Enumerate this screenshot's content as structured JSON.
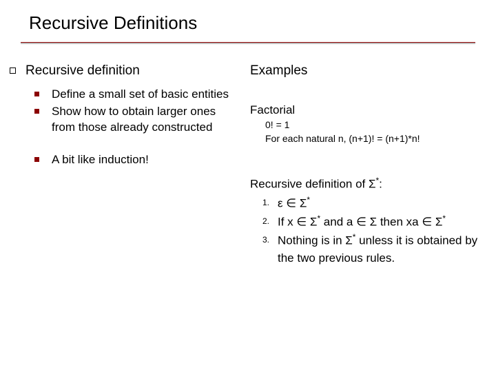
{
  "title": "Recursive Definitions",
  "colors": {
    "accent": "#8b0000",
    "text": "#000000",
    "background": "#ffffff",
    "divider_shadow": "#c0c0c0"
  },
  "typography": {
    "family": "Verdana",
    "title_size_pt": 26,
    "heading_size_pt": 19,
    "body_size_pt": 17,
    "sub_size_pt": 14,
    "num_size_pt": 12
  },
  "left": {
    "heading": "Recursive definition",
    "items": [
      "Define a small set of basic entities",
      "Show how to obtain larger ones from those already constructed",
      "A bit like induction!"
    ]
  },
  "right": {
    "heading": "Examples",
    "factorial": {
      "label": "Factorial",
      "line1": "0! = 1",
      "line2": "For each natural n, (n+1)! = (n+1)*n!"
    },
    "sigma": {
      "heading_prefix": "Recursive definition of ",
      "heading_symbol": "Σ",
      "heading_suffix": ":",
      "items": [
        {
          "num": "1.",
          "text_html": "ε ∈ Σ<span class='sup'>*</span>"
        },
        {
          "num": "2.",
          "text_html": "If x ∈ Σ<span class='sup'>*</span> and a ∈ Σ then xa  ∈ Σ<span class='sup'>*</span>"
        },
        {
          "num": "3.",
          "text_html": "Nothing is in Σ<span class='sup'>*</span> unless it is obtained by the two previous rules."
        }
      ]
    }
  }
}
